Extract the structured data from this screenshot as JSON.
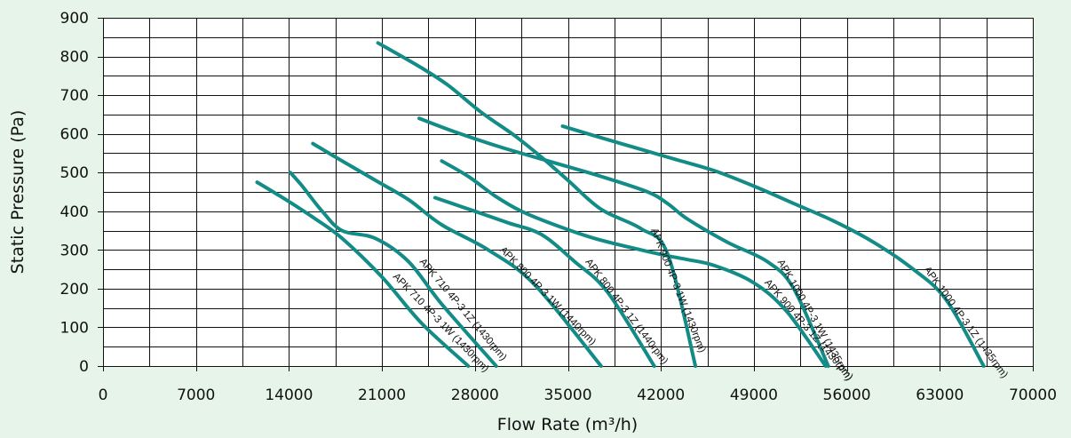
{
  "chart_data": {
    "type": "line",
    "xlabel": "Flow Rate (m³/h)",
    "ylabel": "Static Pressure (Pa)",
    "xlim": [
      0,
      70000
    ],
    "ylim": [
      0,
      900
    ],
    "x_ticks": [
      0,
      7000,
      14000,
      21000,
      28000,
      35000,
      42000,
      49000,
      56000,
      63000,
      70000
    ],
    "y_ticks": [
      0,
      100,
      200,
      300,
      400,
      500,
      600,
      700,
      800,
      900
    ],
    "grid": true,
    "line_color": "#138c87",
    "background": "#e6f4ea",
    "series": [
      {
        "name": "APK 710 4P-3 1W (1430rpm)",
        "x": [
          11600,
          14000,
          16000,
          18000,
          21000,
          24000,
          27500
        ],
        "y": [
          475,
          425,
          380,
          330,
          230,
          110,
          0
        ]
      },
      {
        "name": "APK 710 4P-3 1Z (1430rpm)",
        "x": [
          14100,
          15000,
          16500,
          18000,
          20500,
          23000,
          25500,
          29600
        ],
        "y": [
          500,
          465,
          400,
          350,
          330,
          270,
          160,
          0
        ]
      },
      {
        "name": "APK 800 4P-3 1W (1440rpm)",
        "x": [
          15800,
          17500,
          20500,
          23000,
          25500,
          29000,
          32500,
          37500
        ],
        "y": [
          575,
          540,
          480,
          430,
          365,
          300,
          210,
          0
        ]
      },
      {
        "name": "APK 800 4P-3 1Z (1440rpm)",
        "x": [
          25000,
          28000,
          30500,
          33000,
          35500,
          38000,
          41500
        ],
        "y": [
          435,
          400,
          370,
          340,
          270,
          190,
          0
        ]
      },
      {
        "name": "APK 900 4P-3 1W (1430rpm)",
        "x": [
          20700,
          24000,
          26000,
          28500,
          31000,
          33000,
          35000,
          37500,
          40500,
          42500,
          44600
        ],
        "y": [
          835,
          770,
          725,
          655,
          595,
          540,
          480,
          405,
          355,
          290,
          0
        ]
      },
      {
        "name": "APK 900 4P-3 1Z (1430rpm)",
        "x": [
          25500,
          27500,
          29500,
          31500,
          34000,
          37000,
          40500,
          42500,
          44000,
          46000,
          49000,
          51500,
          54400
        ],
        "y": [
          530,
          490,
          440,
          400,
          365,
          330,
          300,
          285,
          275,
          260,
          215,
          140,
          0
        ]
      },
      {
        "name": "APK 1000 4P-3 1W (1435rpm)",
        "x": [
          23800,
          26500,
          30000,
          34000,
          37500,
          41000,
          42500,
          44000,
          47000,
          50000,
          52000,
          54600
        ],
        "y": [
          640,
          605,
          565,
          525,
          490,
          450,
          420,
          380,
          320,
          270,
          200,
          0
        ]
      },
      {
        "name": "APK 1000 4P-3 1Z (1435rpm)",
        "x": [
          34600,
          37000,
          40000,
          43000,
          46000,
          49000,
          52000,
          55000,
          58000,
          61000,
          63500,
          66300
        ],
        "y": [
          620,
          595,
          565,
          535,
          505,
          465,
          420,
          375,
          320,
          250,
          170,
          0
        ]
      }
    ]
  }
}
